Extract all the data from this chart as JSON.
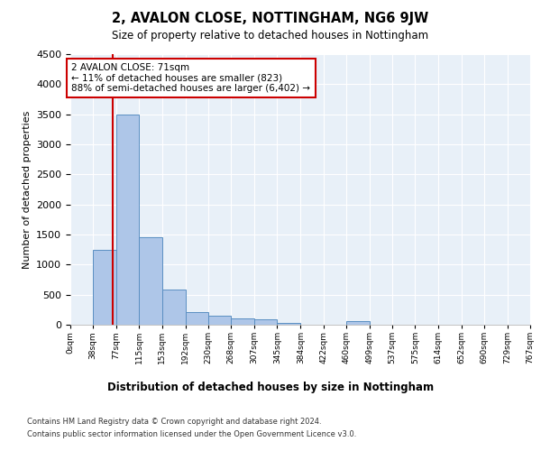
{
  "title": "2, AVALON CLOSE, NOTTINGHAM, NG6 9JW",
  "subtitle": "Size of property relative to detached houses in Nottingham",
  "xlabel": "Distribution of detached houses by size in Nottingham",
  "ylabel": "Number of detached properties",
  "bin_edges": [
    0,
    38,
    77,
    115,
    153,
    192,
    230,
    268,
    307,
    345,
    384,
    422,
    460,
    499,
    537,
    575,
    614,
    652,
    690,
    729,
    767
  ],
  "bar_heights": [
    5,
    1250,
    3500,
    1450,
    580,
    210,
    155,
    110,
    85,
    35,
    5,
    0,
    55,
    0,
    5,
    0,
    0,
    0,
    0,
    0
  ],
  "bar_color": "#aec6e8",
  "bar_edge_color": "#5a8fc2",
  "property_line_x": 71,
  "property_line_color": "#cc0000",
  "annotation_text": "2 AVALON CLOSE: 71sqm\n← 11% of detached houses are smaller (823)\n88% of semi-detached houses are larger (6,402) →",
  "annotation_box_color": "#cc0000",
  "ylim": [
    0,
    4500
  ],
  "yticks": [
    0,
    500,
    1000,
    1500,
    2000,
    2500,
    3000,
    3500,
    4000,
    4500
  ],
  "footnote1": "Contains HM Land Registry data © Crown copyright and database right 2024.",
  "footnote2": "Contains public sector information licensed under the Open Government Licence v3.0.",
  "bg_color": "#e8f0f8",
  "plot_bg_color": "#e8f0f8"
}
